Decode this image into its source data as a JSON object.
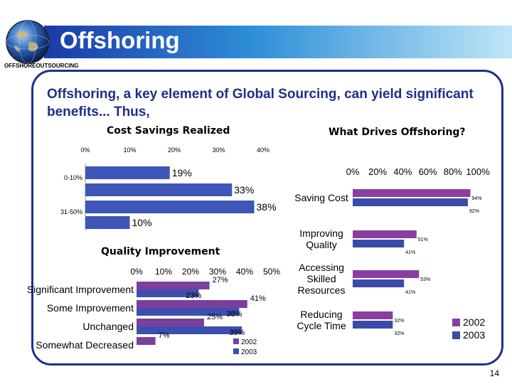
{
  "slide": {
    "title": "Offshoring",
    "subtitle_tag": "OFFSHOREOUTSOURCING",
    "headline": "Offshoring, a key element of Global Sourcing, can yield significant benefits... Thus,",
    "page_number": "14",
    "colors": {
      "banner_start": "#1a3aa8",
      "banner_end": "#bfe6f6",
      "frame": "#1e2f8a",
      "headline": "#1f2f8a"
    }
  },
  "chart_data": [
    {
      "type": "bar",
      "orientation": "horizontal",
      "title": "Cost Savings Realized",
      "categories": [
        "0-10%",
        "",
        "31-50%",
        ""
      ],
      "values": [
        19,
        33,
        38,
        10
      ],
      "value_labels": [
        "19%",
        "33%",
        "38%",
        "10%"
      ],
      "xlim": [
        0,
        40
      ],
      "xticks": [
        "0%",
        "10%",
        "20%",
        "30%",
        "40%"
      ],
      "color": "#3d56b8"
    },
    {
      "type": "bar",
      "orientation": "horizontal",
      "title": "Quality Improvement",
      "categories": [
        "Significant Improvement",
        "Some Improvement",
        "Unchanged",
        "Somewhat Decreased"
      ],
      "series": [
        {
          "name": "2002",
          "values": [
            27,
            41,
            25,
            7
          ],
          "labels": [
            "27%",
            "41%",
            "25%",
            "7%"
          ],
          "color": "#7b3f9e"
        },
        {
          "name": "2003",
          "values": [
            23,
            38,
            39,
            0
          ],
          "labels": [
            "23%",
            "38%",
            "39%",
            ""
          ],
          "color": "#3d4fae"
        }
      ],
      "xlim": [
        0,
        50
      ],
      "xticks": [
        "0%",
        "10%",
        "20%",
        "30%",
        "40%",
        "50%"
      ]
    },
    {
      "type": "bar",
      "orientation": "horizontal",
      "title": "What Drives Offshoring?",
      "categories": [
        "Saving Cost",
        "Improving Quality",
        "Accessing Skilled Resources",
        "Reducing Cycle Time"
      ],
      "series": [
        {
          "name": "2002",
          "values": [
            94,
            51,
            53,
            32
          ],
          "labels": [
            "94%",
            "51%",
            "53%",
            "32%"
          ],
          "color": "#8a3fa0"
        },
        {
          "name": "2003",
          "values": [
            92,
            41,
            41,
            32
          ],
          "labels": [
            "92%",
            "41%",
            "41%",
            "32%"
          ],
          "color": "#3a4aa8"
        }
      ],
      "xlim": [
        0,
        100
      ],
      "xticks": [
        "0%",
        "20%",
        "40%",
        "60%",
        "80%",
        "100%"
      ],
      "legend": "right"
    }
  ]
}
